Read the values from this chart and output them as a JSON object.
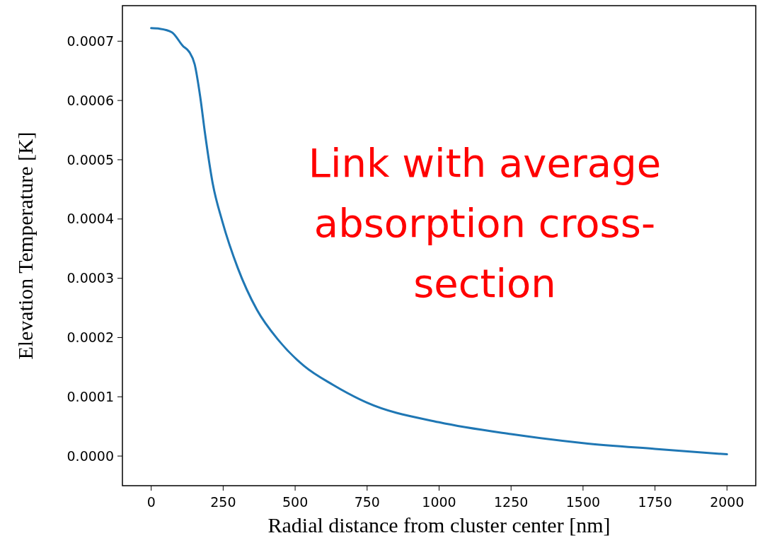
{
  "chart_data": {
    "type": "line",
    "xlabel": "Radial distance from cluster center [nm]",
    "ylabel": "Elevation Temperature [K]",
    "annotations": [
      "Link with average absorption cross-section"
    ],
    "xlim": [
      -100,
      2100
    ],
    "xticks": [
      0,
      250,
      500,
      750,
      1000,
      1250,
      1500,
      1750,
      2000
    ],
    "ylim": [
      -5e-05,
      0.00076
    ],
    "yticks": [
      {
        "value": 0,
        "label": "0.0000"
      },
      {
        "value": 0.0001,
        "label": "0.0001"
      },
      {
        "value": 0.0002,
        "label": "0.0002"
      },
      {
        "value": 0.0003,
        "label": "0.0003"
      },
      {
        "value": 0.0004,
        "label": "0.0004"
      },
      {
        "value": 0.0005,
        "label": "0.0005"
      },
      {
        "value": 0.0006,
        "label": "0.0006"
      },
      {
        "value": 0.0007,
        "label": "0.0007"
      }
    ],
    "grid": false,
    "marker": "none",
    "line_style": "solid",
    "series": [
      {
        "color": "#1f77b4",
        "x": [
          0,
          30,
          72,
          110,
          132,
          151,
          170,
          187,
          214,
          247,
          301,
          367,
          443,
          531,
          632,
          750,
          1000,
          1250,
          1500,
          1750,
          2000
        ],
        "values": [
          0.000722,
          0.000721,
          0.000715,
          0.000692,
          0.000682,
          0.000661,
          0.000607,
          0.000544,
          0.000459,
          0.000396,
          0.000317,
          0.000247,
          0.000195,
          0.000152,
          0.00012,
          9e-05,
          5.7e-05,
          3.7e-05,
          2.2e-05,
          1.2e-05,
          3e-06
        ]
      }
    ]
  }
}
